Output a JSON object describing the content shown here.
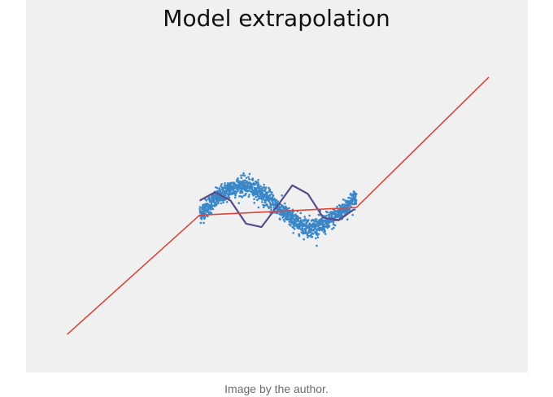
{
  "caption": "Image by the author.",
  "chart_data": {
    "type": "line",
    "title": "Model extrapolation",
    "xlabel": "",
    "ylabel": "",
    "xlim": [
      -10,
      10
    ],
    "ylim": [
      -8.5,
      9.5
    ],
    "axes_visible": false,
    "grid": false,
    "series": [
      {
        "kind": "scatter",
        "color": "#3a87c8",
        "x_range": [
          -3.5,
          3.6
        ],
        "function": "sin"
      },
      {
        "kind": "line",
        "color": "#5a4a8a",
        "x": [
          -3.5,
          -2.8,
          -2.1,
          -1.4,
          -0.7,
          0.0,
          0.7,
          1.4,
          2.1,
          2.8,
          3.5
        ],
        "y": [
          0.35,
          0.85,
          0.35,
          -1.0,
          -1.2,
          0.0,
          1.25,
          0.75,
          -0.65,
          -0.8,
          -0.15
        ]
      },
      {
        "kind": "line",
        "color": "#d9453c",
        "x": [
          -9.5,
          -3.5,
          3.6,
          9.6
        ],
        "y": [
          -7.5,
          -0.5,
          -0.05,
          7.6
        ]
      }
    ]
  }
}
